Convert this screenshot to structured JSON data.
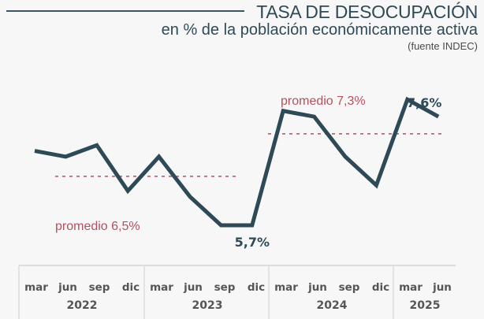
{
  "header": {
    "title": "TASA DE DESOCUPACIÓN",
    "subtitle": "en % de la población económicamente activa",
    "source": "(fuente INDEC)"
  },
  "chart_data": {
    "type": "line",
    "title": "TASA DE DESOCUPACIÓN",
    "subtitle": "en % de la población económicamente activa",
    "source": "(fuente INDEC)",
    "xlabel": "",
    "ylabel": "",
    "ylim": [
      5.0,
      8.5
    ],
    "grid": false,
    "line_color": "#2f4a57",
    "average_color": "#b5505e",
    "categories": [
      "mar",
      "jun",
      "sep",
      "dic",
      "mar",
      "jun",
      "sep",
      "dic",
      "mar",
      "jun",
      "sep",
      "dic",
      "mar",
      "jun"
    ],
    "years": [
      {
        "label": "2022",
        "quarters": [
          "mar",
          "jun",
          "sep",
          "dic"
        ]
      },
      {
        "label": "2023",
        "quarters": [
          "mar",
          "jun",
          "sep",
          "dic"
        ]
      },
      {
        "label": "2024",
        "quarters": [
          "mar",
          "jun",
          "sep",
          "dic"
        ]
      },
      {
        "label": "2025",
        "quarters": [
          "mar",
          "jun"
        ]
      }
    ],
    "series": [
      {
        "name": "Tasa de desocupación",
        "values": [
          7.0,
          6.9,
          7.1,
          6.3,
          6.9,
          6.2,
          5.7,
          5.7,
          7.7,
          7.6,
          6.9,
          6.4,
          7.9,
          7.6
        ]
      }
    ],
    "averages": [
      {
        "label": "promedio 6,5%",
        "value": 6.5,
        "from_index": 0,
        "to_index": 7
      },
      {
        "label": "promedio 7,3%",
        "value": 7.3,
        "from_index": 8,
        "to_index": 13
      }
    ],
    "annotations": [
      {
        "label": "5,7%",
        "index": 7
      },
      {
        "label": "7,6%",
        "index": 13
      }
    ]
  }
}
